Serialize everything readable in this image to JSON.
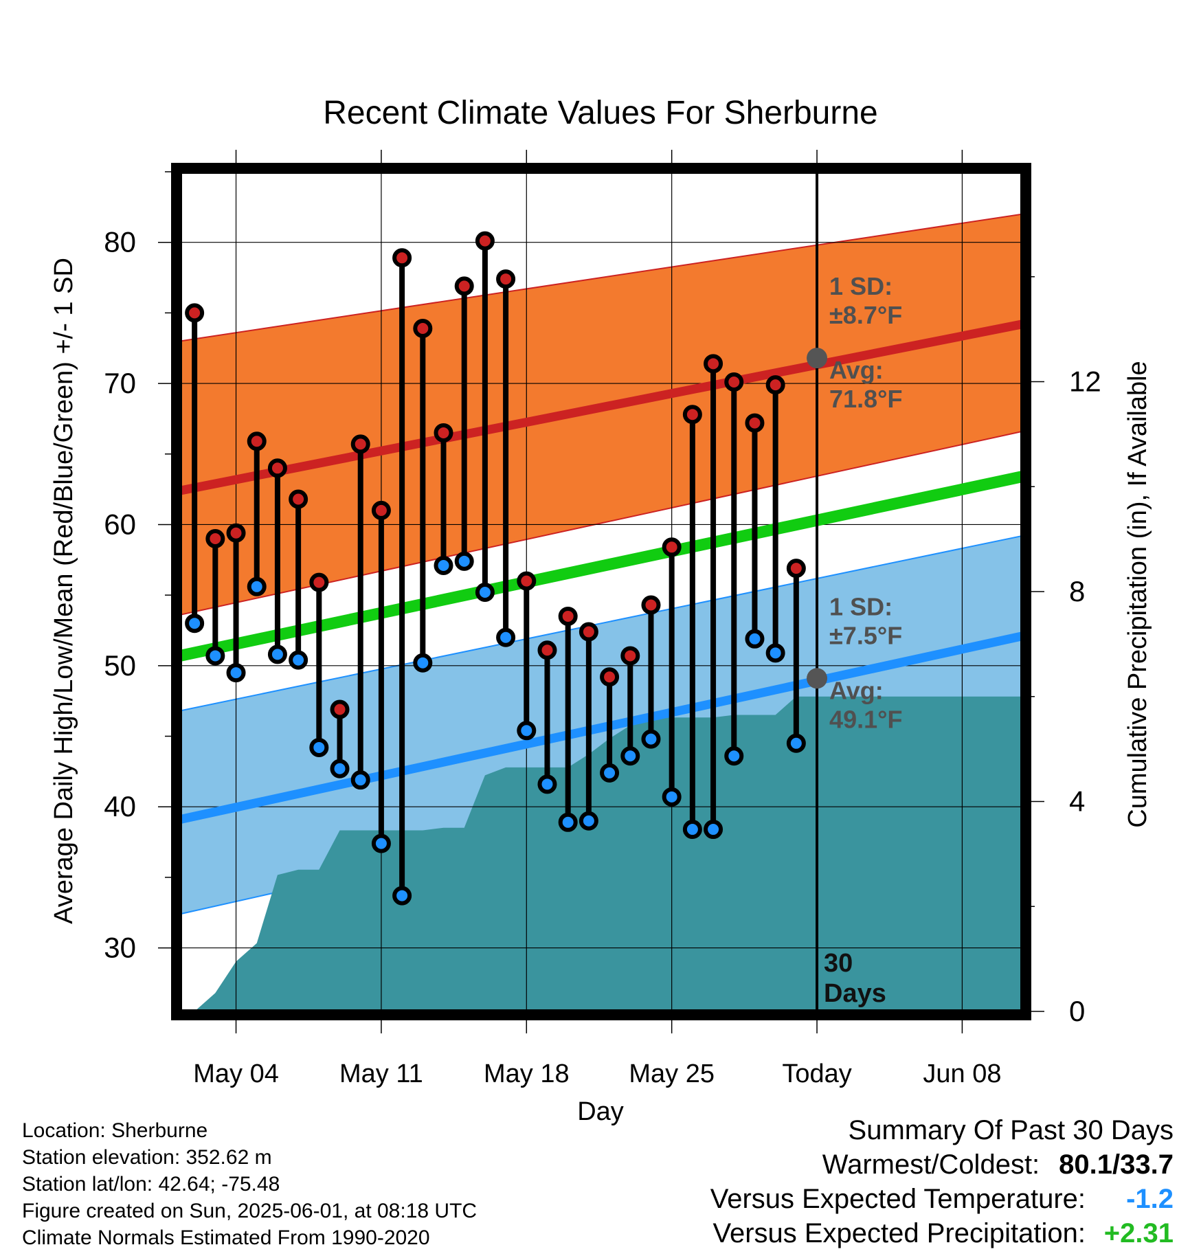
{
  "chart_data": {
    "type": "line",
    "title": "Recent Climate Values For Sherburne",
    "xlabel": "Day",
    "ylabel": "Average Daily High/Low/Mean (Red/Blue/Green) +/- 1 SD",
    "ylabel_right": "Cumulative Precipitation (in), If Available",
    "ylim": [
      25.5,
      85
    ],
    "y2lim": [
      0,
      16
    ],
    "x_ticks": [
      {
        "day": 4,
        "label": "May 04"
      },
      {
        "day": 11,
        "label": "May 11"
      },
      {
        "day": 18,
        "label": "May 18"
      },
      {
        "day": 25,
        "label": "May 25"
      },
      {
        "day": 32,
        "label": "Today"
      },
      {
        "day": 39,
        "label": "Jun 08"
      }
    ],
    "y_ticks": [
      30,
      40,
      50,
      60,
      70,
      80
    ],
    "y2_ticks": [
      0,
      4,
      8,
      12
    ],
    "xlim": [
      1.3,
      41.9
    ],
    "today_day": 32,
    "days": [
      2,
      3,
      4,
      5,
      6,
      7,
      8,
      9,
      10,
      11,
      12,
      13,
      14,
      15,
      16,
      17,
      18,
      19,
      20,
      21,
      22,
      23,
      24,
      25,
      26,
      27,
      28,
      29,
      30,
      31
    ],
    "series": [
      {
        "name": "High",
        "color": "#cc2222",
        "values": [
          75.0,
          59.0,
          59.4,
          65.9,
          64.0,
          61.8,
          55.9,
          46.9,
          65.7,
          61.0,
          78.9,
          73.9,
          66.5,
          76.9,
          80.1,
          77.4,
          56.0,
          51.1,
          53.5,
          52.4,
          49.2,
          50.7,
          54.3,
          58.4,
          67.8,
          71.4,
          70.1,
          67.2,
          69.9,
          56.9
        ]
      },
      {
        "name": "Low",
        "color": "#1e90ff",
        "values": [
          53.0,
          50.7,
          49.5,
          55.6,
          50.8,
          50.4,
          44.2,
          42.7,
          41.9,
          37.4,
          33.7,
          50.2,
          57.1,
          57.4,
          55.2,
          52.0,
          45.4,
          41.6,
          38.9,
          39.0,
          42.4,
          43.6,
          44.8,
          40.7,
          38.4,
          38.4,
          43.6,
          51.9,
          50.9,
          44.5
        ]
      }
    ],
    "normals": {
      "days": [
        1.3,
        41.9
      ],
      "avg_high": [
        62.4,
        74.2
      ],
      "avg_high_sd_lower": [
        53.6,
        66.6
      ],
      "avg_high_sd_upper": [
        73.0,
        82.0
      ],
      "avg_mean": [
        50.7,
        63.4
      ],
      "avg_low": [
        39.1,
        52.1
      ],
      "avg_low_sd_lower": [
        32.4,
        45.8
      ],
      "avg_low_sd_upper": [
        46.8,
        59.2
      ]
    },
    "precipitation": {
      "color": "#3a949e",
      "days": [
        2.0,
        3.0,
        4.0,
        5.0,
        6.0,
        7.0,
        8.0,
        9.0,
        10.0,
        11.0,
        12.0,
        13.0,
        14.0,
        15.0,
        16.0,
        17.0,
        18.0,
        19.0,
        20.0,
        21.0,
        22.0,
        23.0,
        24.0,
        25.0,
        26.0,
        27.0,
        28.0,
        29.0,
        30.0,
        31.0,
        32.0,
        41.9
      ],
      "values": [
        0.0,
        0.35,
        0.95,
        1.3,
        2.6,
        2.7,
        2.7,
        3.45,
        3.45,
        3.45,
        3.45,
        3.45,
        3.5,
        3.5,
        4.5,
        4.65,
        4.65,
        4.65,
        4.65,
        4.9,
        5.2,
        5.45,
        5.6,
        5.6,
        5.6,
        5.6,
        5.65,
        5.65,
        5.65,
        6.0,
        6.0,
        6.0
      ]
    },
    "annotations": {
      "high_sd_label": "1 SD:",
      "high_sd_value": "±8.7°F",
      "high_avg_label": "Avg:",
      "high_avg_value": "71.8°F",
      "low_sd_label": "1 SD:",
      "low_sd_value": "±7.5°F",
      "low_avg_label": "Avg:",
      "low_avg_value": "49.1°F",
      "days_number": "30",
      "days_word": "Days",
      "today_avg_high": 71.8,
      "today_avg_low": 49.1
    },
    "colors": {
      "high_band": "#f37a2e",
      "high_line": "#cc2222",
      "low_band": "#85c2e8",
      "low_line": "#1e90ff",
      "mean_line": "#11cc11",
      "annotation_text": "#505050"
    },
    "grid": true,
    "legend": "none"
  },
  "footer": {
    "location": "Location: Sherburne",
    "elevation": "Station elevation: 352.62 m",
    "latlon": "Station lat/lon: 42.64; -75.48",
    "created": "Figure created on Sun, 2025-06-01, at 08:18 UTC",
    "normals": "Climate Normals Estimated From 1990-2020"
  },
  "summary": {
    "title": "Summary Of Past 30 Days",
    "warmest_label": "Warmest/Coldest:",
    "warmest_value": "80.1/33.7",
    "temp_label": "Versus Expected Temperature:",
    "temp_value": "-1.2",
    "temp_color": "#1e90ff",
    "precip_label": "Versus Expected Precipitation:",
    "precip_value": "+2.31",
    "precip_color": "#22bb22"
  }
}
